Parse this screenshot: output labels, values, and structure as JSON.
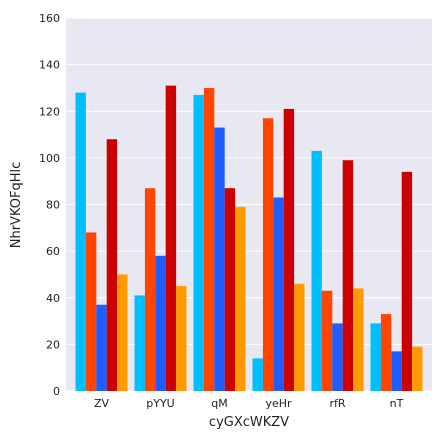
{
  "chart_data": {
    "type": "bar",
    "title": "",
    "xlabel": "cyGXcWKZV",
    "ylabel": "NhrVKOFqHlc",
    "categories": [
      "ZV",
      "pYYU",
      "qM",
      "yeHr",
      "rfR",
      "nT"
    ],
    "ylim": [
      0,
      160
    ],
    "yticks": [
      0,
      20,
      40,
      60,
      80,
      100,
      120,
      140,
      160
    ],
    "grid": true,
    "legend": "none",
    "series": [
      {
        "color": "#00bfff",
        "values": [
          128,
          41,
          127,
          14,
          103,
          29
        ]
      },
      {
        "color": "#ff4500",
        "values": [
          68,
          87,
          130,
          117,
          43,
          33
        ]
      },
      {
        "color": "#1e5eff",
        "values": [
          37,
          58,
          113,
          83,
          29,
          17
        ]
      },
      {
        "color": "#cc0000",
        "values": [
          108,
          131,
          87,
          121,
          99,
          94
        ]
      },
      {
        "color": "#ff9a00",
        "values": [
          50,
          45,
          79,
          46,
          44,
          19
        ]
      }
    ]
  }
}
